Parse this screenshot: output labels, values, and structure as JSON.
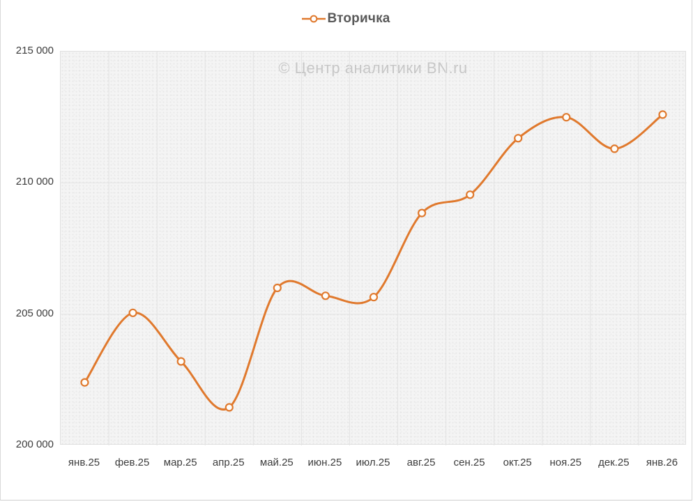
{
  "chart_data": {
    "type": "line",
    "legend": "Вторичка",
    "watermark": "© Центр аналитики BN.ru",
    "categories": [
      "янв.25",
      "фев.25",
      "мар.25",
      "апр.25",
      "май.25",
      "июн.25",
      "июл.25",
      "авг.25",
      "сен.25",
      "окт.25",
      "ноя.25",
      "дек.25",
      "янв.26"
    ],
    "series": [
      {
        "name": "Вторичка",
        "values": [
          202400,
          205050,
          203200,
          201450,
          206000,
          205700,
          205650,
          208850,
          209550,
          211700,
          212500,
          211300,
          212600
        ]
      }
    ],
    "ylim": [
      200000,
      215000
    ],
    "yticks": {
      "values": [
        200000,
        205000,
        210000,
        215000
      ],
      "labels": [
        "200 000",
        "205 000",
        "210 000",
        "215 000"
      ]
    },
    "grid": {
      "vertical": true,
      "horizontal": true
    },
    "legend_position": "top-center",
    "smooth_line": true,
    "colors": {
      "line": "#e0792d",
      "marker_fill": "#fffdf9",
      "gridline": "#e3e3e3",
      "axis_text": "#3c3c3c",
      "legend_text": "#595959",
      "watermark_text": "#c7c7c7",
      "plot_bg": "#f4f4f4"
    }
  }
}
